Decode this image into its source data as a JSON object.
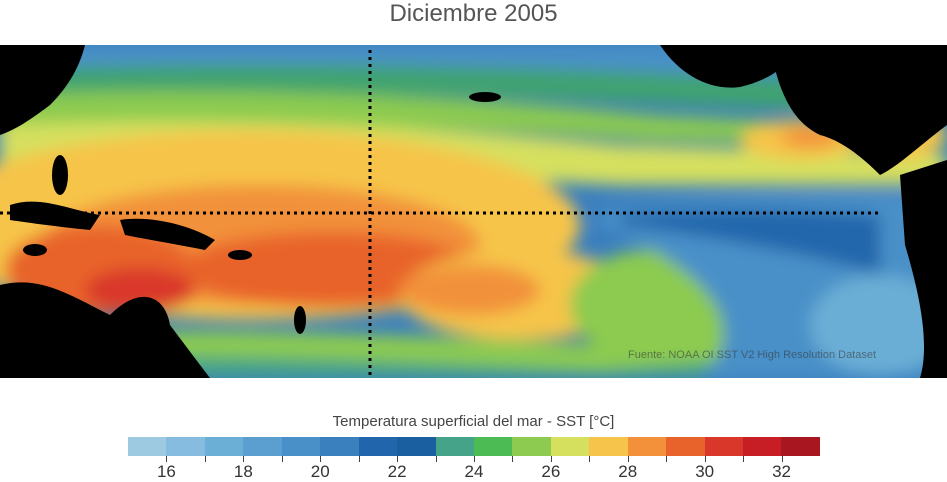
{
  "title": "Diciembre 2005",
  "source": "Fuente: NOAA OI SST V2 High Resolution Dataset",
  "colorbar": {
    "title": "Temperatura superficial del mar - SST  [°C]",
    "min": 15,
    "max": 33,
    "tick_labels": [
      "16",
      "18",
      "20",
      "22",
      "24",
      "26",
      "28",
      "30",
      "32"
    ],
    "colors": [
      "#9ecae1",
      "#85bce0",
      "#6baed6",
      "#5a9fd0",
      "#4a90c8",
      "#3a7fbe",
      "#2166ac",
      "#1a5fa0",
      "#44a389",
      "#4dbb53",
      "#8ccb4f",
      "#d6e05f",
      "#f6c44a",
      "#f2913a",
      "#e8632b",
      "#d9372a",
      "#c71e25",
      "#a8161f"
    ]
  },
  "map": {
    "land_color": "#000000",
    "region": "Pacífico tropical",
    "reference_lines": [
      "Ecuador",
      "Meridiano 180°"
    ]
  }
}
